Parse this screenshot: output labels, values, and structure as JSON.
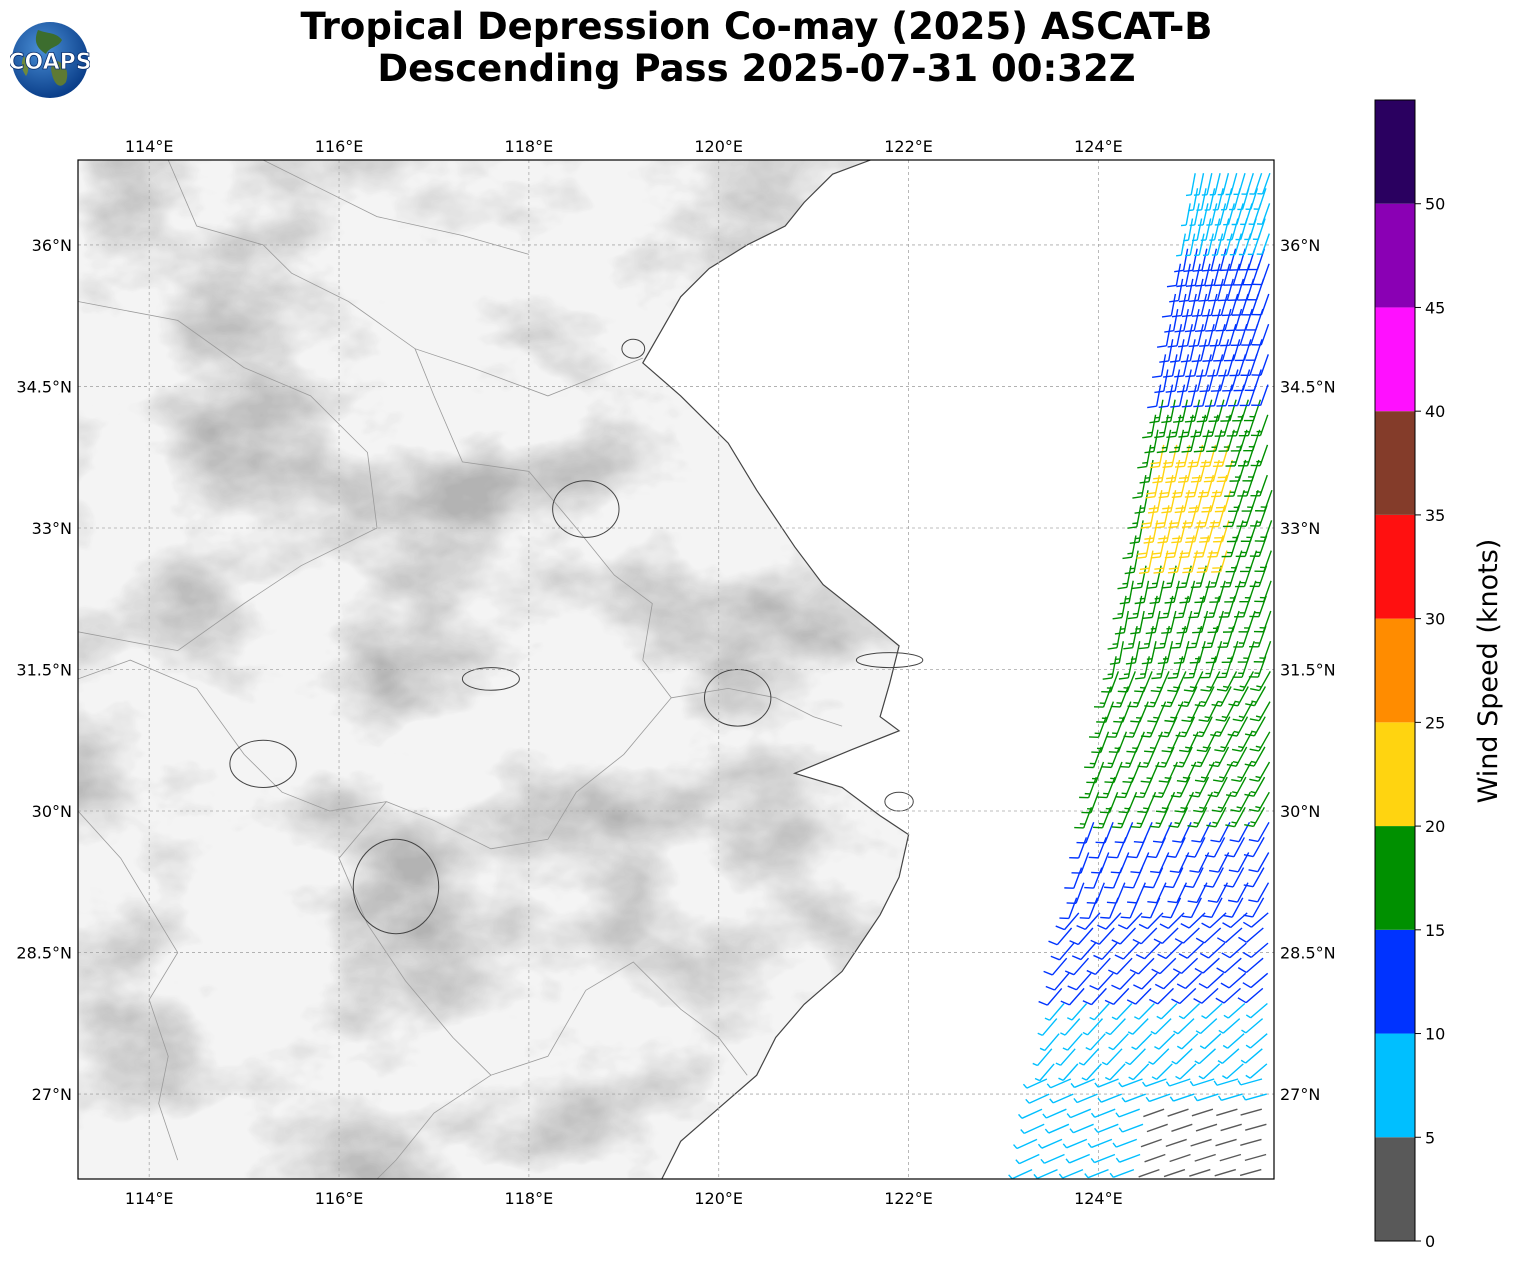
{
  "title": {
    "line1": "Tropical Depression Co-may (2025) ASCAT-B",
    "line2": "Descending Pass 2025-07-31 00:32Z"
  },
  "logo": {
    "text": "COAPS",
    "icon": "globe-icon"
  },
  "map": {
    "lon_range": [
      113.25,
      125.85
    ],
    "lat_range": [
      26.1,
      36.9
    ],
    "lon_ticks": [
      {
        "value": 114,
        "label": "114°E"
      },
      {
        "value": 116,
        "label": "116°E"
      },
      {
        "value": 118,
        "label": "118°E"
      },
      {
        "value": 120,
        "label": "120°E"
      },
      {
        "value": 122,
        "label": "122°E"
      },
      {
        "value": 124,
        "label": "124°E"
      }
    ],
    "lat_ticks": [
      {
        "value": 27,
        "label": "27°N"
      },
      {
        "value": 28.5,
        "label": "28.5°N"
      },
      {
        "value": 30,
        "label": "30°N"
      },
      {
        "value": 31.5,
        "label": "31.5°N"
      },
      {
        "value": 33,
        "label": "33°N"
      },
      {
        "value": 34.5,
        "label": "34.5°N"
      },
      {
        "value": 36,
        "label": "36°N"
      }
    ],
    "grid": true,
    "swath": {
      "top_edge": [
        125.0,
        36.9
      ],
      "bottom_edge": [
        123.15,
        26.1
      ],
      "east_limit": 125.85
    }
  },
  "colorbar": {
    "label": "Wind Speed (knots)",
    "ticks": [
      {
        "value": 0,
        "label": "0"
      },
      {
        "value": 5,
        "label": "5"
      },
      {
        "value": 10,
        "label": "10"
      },
      {
        "value": 15,
        "label": "15"
      },
      {
        "value": 20,
        "label": "20"
      },
      {
        "value": 25,
        "label": "25"
      },
      {
        "value": 30,
        "label": "30"
      },
      {
        "value": 35,
        "label": "35"
      },
      {
        "value": 40,
        "label": "40"
      },
      {
        "value": 45,
        "label": "45"
      },
      {
        "value": 50,
        "label": "50"
      }
    ],
    "bins": [
      {
        "min": 0,
        "max": 5,
        "color": "#595959"
      },
      {
        "min": 5,
        "max": 10,
        "color": "#00bfff"
      },
      {
        "min": 10,
        "max": 15,
        "color": "#0033ff"
      },
      {
        "min": 15,
        "max": 20,
        "color": "#009000"
      },
      {
        "min": 20,
        "max": 25,
        "color": "#ffd410"
      },
      {
        "min": 25,
        "max": 30,
        "color": "#ff8c00"
      },
      {
        "min": 30,
        "max": 35,
        "color": "#ff1010"
      },
      {
        "min": 35,
        "max": 40,
        "color": "#843c2a"
      },
      {
        "min": 40,
        "max": 45,
        "color": "#ff10ff"
      },
      {
        "min": 45,
        "max": 50,
        "color": "#8a00b4"
      },
      {
        "min": 50,
        "max": 55,
        "color": "#2a0060"
      }
    ],
    "range": [
      0,
      55
    ]
  }
}
